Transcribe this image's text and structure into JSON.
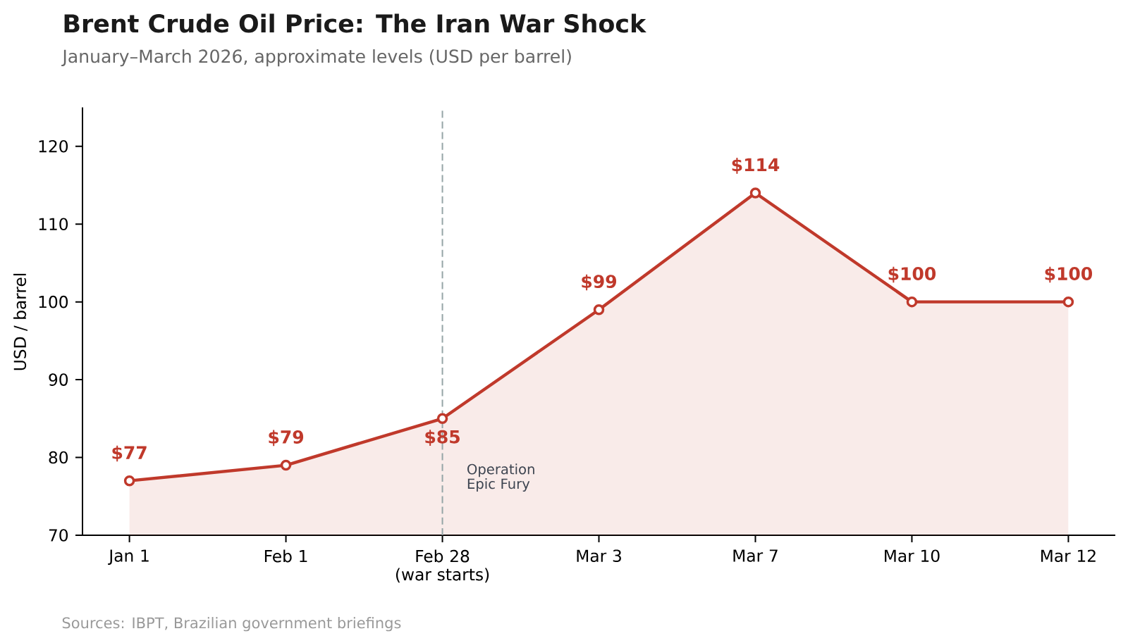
{
  "chart_data": {
    "type": "area",
    "title": "Brent Crude Oil Price: The Iran War Shock",
    "subtitle": "January–March 2026, approximate levels (USD per barrel)",
    "ylabel": "USD / barrel",
    "categories": [
      "Jan 1",
      "Feb 1",
      "Feb 28 (war starts)",
      "Mar 3",
      "Mar 7",
      "Mar 10",
      "Mar 12"
    ],
    "values": [
      77,
      79,
      85,
      99,
      114,
      100,
      100
    ],
    "value_labels": [
      "$77",
      "$79",
      "$85",
      "$99",
      "$114",
      "$100",
      "$100"
    ],
    "color": "#c0392b",
    "ylim": [
      70,
      125
    ],
    "yticks": [
      70,
      80,
      90,
      100,
      110,
      120
    ],
    "marker": "circle",
    "line_style": "solid",
    "ref_lines": [
      {
        "axis": "x",
        "value": "Feb 28 (war starts)",
        "label": "Operation Epic Fury",
        "color": "#95a5a6",
        "line_style": "dashed"
      }
    ],
    "annotations": [
      "Sources: IBPT, Brazilian government briefings"
    ]
  }
}
